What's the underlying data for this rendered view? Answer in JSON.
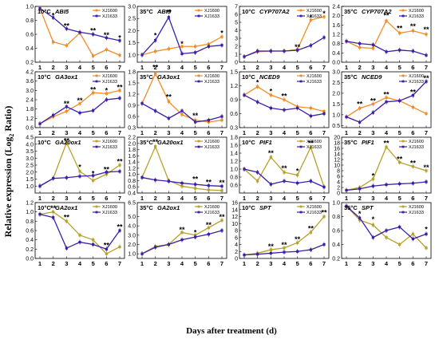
{
  "figure": {
    "ylabel": "Relative expression (Log",
    "ylabel_sub": "2",
    "ylabel_tail": " Ratio)",
    "xlabel": "Days after treatment (d)"
  },
  "colors": {
    "XJ1600_orange": "#F28C28",
    "XJ1600_olive": "#B8A02A",
    "XJ1633": "#3A1EA8"
  },
  "chart_data": [
    {
      "type": "line",
      "temp": "10°C",
      "gene": "ABI5",
      "color1": "#F28C28",
      "x": [
        1,
        2,
        3,
        4,
        5,
        6,
        7
      ],
      "ylim": [
        0.2,
        1.0
      ],
      "yticks": [
        "0.2",
        "0.4",
        "0.6",
        "0.8",
        "1.0"
      ],
      "series": [
        {
          "name": "XJ1600",
          "values": [
            0.97,
            0.49,
            0.44,
            0.62,
            0.29,
            0.38,
            0.3
          ]
        },
        {
          "name": "XJ1633",
          "values": [
            0.97,
            0.84,
            0.68,
            0.63,
            0.6,
            0.55,
            0.51
          ]
        }
      ],
      "sig": [
        {
          "x": 2,
          "y": 0.87,
          "text": "*"
        },
        {
          "x": 3,
          "y": 0.72,
          "text": "**"
        },
        {
          "x": 5,
          "y": 0.65,
          "text": "**"
        },
        {
          "x": 6,
          "y": 0.59,
          "text": "**"
        },
        {
          "x": 7,
          "y": 0.55,
          "text": "*"
        }
      ]
    },
    {
      "type": "line",
      "temp": "35°C",
      "gene": "ABI5",
      "color1": "#F28C28",
      "x": [
        1,
        2,
        3,
        4,
        5,
        6,
        7
      ],
      "ylim": [
        0.7,
        3.0
      ],
      "yticks": [
        "1.0",
        "1.5",
        "2.0",
        "2.5",
        "3.0"
      ],
      "series": [
        {
          "name": "XJ1600",
          "values": [
            1.0,
            1.15,
            1.25,
            1.35,
            1.35,
            1.45,
            1.75
          ]
        },
        {
          "name": "XJ1633",
          "values": [
            1.0,
            1.6,
            2.55,
            1.05,
            1.1,
            1.35,
            1.4
          ]
        }
      ],
      "sig": [
        {
          "x": 2,
          "y": 1.8,
          "text": "*"
        },
        {
          "x": 3,
          "y": 2.75,
          "text": "**"
        },
        {
          "x": 4,
          "y": 1.45,
          "text": "*"
        },
        {
          "x": 7,
          "y": 1.9,
          "text": "*"
        }
      ]
    },
    {
      "type": "line",
      "temp": "10°C",
      "gene": "CYP707A2",
      "color1": "#F28C28",
      "x": [
        1,
        2,
        3,
        4,
        5,
        6,
        7
      ],
      "ylim": [
        0,
        7
      ],
      "yticks": [
        "0",
        "1",
        "2",
        "3",
        "4",
        "5",
        "6",
        "7"
      ],
      "series": [
        {
          "name": "XJ1600",
          "values": [
            0.7,
            1.3,
            1.4,
            1.4,
            1.6,
            5.3,
            5.7
          ]
        },
        {
          "name": "XJ1633",
          "values": [
            0.7,
            1.4,
            1.4,
            1.4,
            1.5,
            2.1,
            3.1
          ]
        }
      ],
      "sig": [
        {
          "x": 5,
          "y": 1.9,
          "text": "**"
        },
        {
          "x": 6,
          "y": 5.6,
          "text": "*"
        },
        {
          "x": 7,
          "y": 6.1,
          "text": "*"
        }
      ]
    },
    {
      "type": "line",
      "temp": "35°C",
      "gene": "CYP707A2",
      "color1": "#F28C28",
      "x": [
        1,
        2,
        3,
        4,
        5,
        6,
        7
      ],
      "ylim": [
        0.0,
        2.4
      ],
      "yticks": [
        "0.0",
        "0.4",
        "0.8",
        "1.2",
        "1.6",
        "2.0",
        "2.4"
      ],
      "series": [
        {
          "name": "XJ1600",
          "values": [
            0.9,
            0.63,
            0.6,
            1.78,
            1.25,
            1.35,
            1.2
          ]
        },
        {
          "name": "XJ1633",
          "values": [
            0.9,
            0.8,
            0.75,
            0.45,
            0.52,
            0.48,
            0.3
          ]
        }
      ],
      "sig": [
        {
          "x": 4,
          "y": 2.0,
          "text": "**"
        },
        {
          "x": 5,
          "y": 1.45,
          "text": "**"
        },
        {
          "x": 6,
          "y": 1.55,
          "text": "**"
        },
        {
          "x": 7,
          "y": 1.4,
          "text": "**"
        }
      ]
    },
    {
      "type": "line",
      "temp": "10°C",
      "gene": "GA3ox1",
      "color1": "#F28C28",
      "x": [
        1,
        2,
        3,
        4,
        5,
        6,
        7
      ],
      "ylim": [
        0.6,
        4.2
      ],
      "yticks": [
        "0.6",
        "1.2",
        "1.8",
        "2.4",
        "3.0",
        "3.6",
        "4.2"
      ],
      "series": [
        {
          "name": "XJ1600",
          "values": [
            0.85,
            1.3,
            1.65,
            2.15,
            2.85,
            2.8,
            3.0
          ]
        },
        {
          "name": "XJ1633",
          "values": [
            0.85,
            1.4,
            1.95,
            1.55,
            1.7,
            2.4,
            2.5
          ]
        }
      ],
      "sig": [
        {
          "x": 3,
          "y": 2.15,
          "text": "**"
        },
        {
          "x": 4,
          "y": 2.35,
          "text": "**"
        },
        {
          "x": 5,
          "y": 3.05,
          "text": "**"
        },
        {
          "x": 6,
          "y": 3.0,
          "text": "*"
        },
        {
          "x": 7,
          "y": 3.2,
          "text": "**"
        }
      ]
    },
    {
      "type": "line",
      "temp": "35°C",
      "gene": "GA3ox1",
      "color1": "#F28C28",
      "x": [
        1,
        2,
        3,
        4,
        5,
        6,
        7
      ],
      "ylim": [
        0.3,
        1.8
      ],
      "yticks": [
        "0.3",
        "0.6",
        "0.9",
        "1.2",
        "1.5",
        "1.8"
      ],
      "series": [
        {
          "name": "XJ1600",
          "values": [
            0.95,
            1.75,
            1.0,
            0.65,
            0.5,
            0.45,
            0.5
          ]
        },
        {
          "name": "XJ1633",
          "values": [
            0.95,
            0.75,
            0.55,
            0.75,
            0.45,
            0.5,
            0.6
          ]
        }
      ],
      "sig": [
        {
          "x": 2,
          "y": 1.92,
          "text": "**"
        },
        {
          "x": 3,
          "y": 1.12,
          "text": "**"
        },
        {
          "x": 5,
          "y": 0.62,
          "text": "**"
        }
      ]
    },
    {
      "type": "line",
      "temp": "10°C",
      "gene": "NCED9",
      "color1": "#F28C28",
      "x": [
        1,
        2,
        3,
        4,
        5,
        6,
        7
      ],
      "ylim": [
        0.3,
        1.5
      ],
      "yticks": [
        "0.3",
        "0.6",
        "0.9",
        "1.2",
        "1.5"
      ],
      "series": [
        {
          "name": "XJ1600",
          "values": [
            1.0,
            1.18,
            1.0,
            0.9,
            0.75,
            0.72,
            0.65
          ]
        },
        {
          "name": "XJ1633",
          "values": [
            1.0,
            0.85,
            0.72,
            0.68,
            0.72,
            0.55,
            0.6
          ]
        }
      ],
      "sig": [
        {
          "x": 2,
          "y": 1.27,
          "text": "*"
        },
        {
          "x": 3,
          "y": 1.08,
          "text": "*"
        },
        {
          "x": 4,
          "y": 0.98,
          "text": "**"
        }
      ]
    },
    {
      "type": "line",
      "temp": "35°C",
      "gene": "NCED9",
      "color1": "#F28C28",
      "x": [
        1,
        2,
        3,
        4,
        5,
        6,
        7
      ],
      "ylim": [
        0.4,
        3.0
      ],
      "yticks": [
        "0.5",
        "1.0",
        "1.5",
        "2.0",
        "2.5",
        "3.0"
      ],
      "series": [
        {
          "name": "XJ1600",
          "values": [
            0.9,
            1.3,
            1.5,
            1.8,
            1.65,
            1.35,
            1.05
          ]
        },
        {
          "name": "XJ1633",
          "values": [
            0.9,
            0.65,
            1.1,
            1.6,
            1.65,
            1.9,
            2.55
          ]
        }
      ],
      "sig": [
        {
          "x": 2,
          "y": 1.5,
          "text": "**"
        },
        {
          "x": 3,
          "y": 1.65,
          "text": "**"
        },
        {
          "x": 4,
          "y": 1.95,
          "text": "**"
        },
        {
          "x": 6,
          "y": 2.05,
          "text": "**"
        },
        {
          "x": 7,
          "y": 2.7,
          "text": "**"
        }
      ]
    },
    {
      "type": "line",
      "temp": "10°C",
      "gene": "GA20ox1",
      "color1": "#B8A02A",
      "x": [
        1,
        2,
        3,
        4,
        5,
        6,
        7
      ],
      "ylim": [
        0.5,
        4.5
      ],
      "yticks": [
        "1.0",
        "1.5",
        "2.0",
        "2.5",
        "3.0",
        "3.5",
        "4.0",
        "4.5"
      ],
      "series": [
        {
          "name": "XJ1600",
          "values": [
            1.0,
            1.55,
            4.1,
            2.05,
            1.4,
            1.85,
            2.5
          ]
        },
        {
          "name": "XJ1633",
          "values": [
            1.0,
            1.55,
            1.6,
            1.7,
            1.75,
            2.0,
            2.05
          ]
        }
      ],
      "sig": [
        {
          "x": 3,
          "y": 4.25,
          "text": "**"
        },
        {
          "x": 4,
          "y": 2.35,
          "text": "*"
        },
        {
          "x": 5,
          "y": 1.9,
          "text": "*"
        },
        {
          "x": 6,
          "y": 2.2,
          "text": "**"
        },
        {
          "x": 7,
          "y": 2.75,
          "text": "**"
        }
      ]
    },
    {
      "type": "line",
      "temp": "35°C",
      "gene": "GA20ox1",
      "color1": "#B8A02A",
      "x": [
        1,
        2,
        3,
        4,
        5,
        6,
        7
      ],
      "ylim": [
        0.4,
        2.2
      ],
      "yticks": [
        "0.4",
        "0.6",
        "0.8",
        "1.0",
        "1.2",
        "1.4",
        "1.6",
        "1.8",
        "2.0",
        "2.2"
      ],
      "series": [
        {
          "name": "XJ1600",
          "values": [
            0.9,
            1.9,
            0.8,
            0.62,
            0.55,
            0.5,
            0.48
          ]
        },
        {
          "name": "XJ1633",
          "values": [
            0.9,
            0.82,
            0.78,
            0.72,
            0.68,
            0.64,
            0.62
          ]
        }
      ],
      "sig": [
        {
          "x": 2,
          "y": 2.05,
          "text": "**"
        },
        {
          "x": 5,
          "y": 0.85,
          "text": "**"
        },
        {
          "x": 6,
          "y": 0.75,
          "text": "**"
        },
        {
          "x": 7,
          "y": 0.73,
          "text": "**"
        }
      ]
    },
    {
      "type": "line",
      "temp": "10°C",
      "gene": "PIF1",
      "color1": "#B8A02A",
      "x": [
        1,
        2,
        3,
        4,
        5,
        6,
        7
      ],
      "ylim": [
        0.4,
        1.8
      ],
      "yticks": [
        "0.6",
        "0.8",
        "1.0",
        "1.2",
        "1.4",
        "1.6",
        "1.8"
      ],
      "series": [
        {
          "name": "XJ1600",
          "values": [
            1.0,
            0.7,
            1.3,
            0.92,
            0.85,
            1.55,
            0.55
          ]
        },
        {
          "name": "XJ1633",
          "values": [
            1.0,
            0.92,
            0.62,
            0.7,
            0.65,
            0.7,
            0.55
          ]
        }
      ],
      "sig": [
        {
          "x": 3,
          "y": 1.4,
          "text": "**"
        },
        {
          "x": 4,
          "y": 1.02,
          "text": "**"
        },
        {
          "x": 5,
          "y": 0.95,
          "text": "*"
        },
        {
          "x": 6,
          "y": 1.65,
          "text": "**"
        }
      ]
    },
    {
      "type": "line",
      "temp": "35°C",
      "gene": "PIF1",
      "color1": "#B8A02A",
      "x": [
        1,
        2,
        3,
        4,
        5,
        6,
        7
      ],
      "ylim": [
        0,
        20
      ],
      "yticks": [
        "0",
        "2",
        "4",
        "6",
        "8",
        "10",
        "12",
        "14",
        "16",
        "18",
        "20"
      ],
      "series": [
        {
          "name": "XJ1600",
          "values": [
            1.0,
            2.0,
            5.0,
            16.5,
            11.0,
            9.5,
            8.0
          ]
        },
        {
          "name": "XJ1633",
          "values": [
            1.0,
            1.5,
            2.5,
            3.0,
            3.3,
            3.5,
            4.0
          ]
        }
      ],
      "sig": [
        {
          "x": 3,
          "y": 6.2,
          "text": "*"
        },
        {
          "x": 4,
          "y": 17.8,
          "text": "**"
        },
        {
          "x": 5,
          "y": 12.2,
          "text": "**"
        },
        {
          "x": 6,
          "y": 10.7,
          "text": "**"
        },
        {
          "x": 7,
          "y": 9.2,
          "text": "**"
        }
      ]
    },
    {
      "type": "line",
      "temp": "10°C",
      "gene": "GA2ox1",
      "color1": "#B8A02A",
      "x": [
        1,
        2,
        3,
        4,
        5,
        6,
        7
      ],
      "ylim": [
        0.0,
        1.2
      ],
      "yticks": [
        "0.0",
        "0.2",
        "0.4",
        "0.6",
        "0.8",
        "1.0",
        "1.2"
      ],
      "series": [
        {
          "name": "XJ1600",
          "values": [
            0.95,
            1.0,
            0.8,
            0.5,
            0.4,
            0.1,
            0.25
          ]
        },
        {
          "name": "XJ1633",
          "values": [
            0.95,
            0.88,
            0.22,
            0.35,
            0.3,
            0.2,
            0.6
          ]
        }
      ],
      "sig": [
        {
          "x": 2,
          "y": 1.08,
          "text": "**"
        },
        {
          "x": 3,
          "y": 0.88,
          "text": "**"
        },
        {
          "x": 6,
          "y": 0.28,
          "text": "**"
        },
        {
          "x": 7,
          "y": 0.68,
          "text": "**"
        }
      ]
    },
    {
      "type": "line",
      "temp": "35°C",
      "gene": "GA2ox1",
      "color1": "#B8A02A",
      "x": [
        1,
        2,
        3,
        4,
        5,
        6,
        7
      ],
      "ylim": [
        0.5,
        6.5
      ],
      "yticks": [
        "1.0",
        "2.0",
        "3.0",
        "4.0",
        "5.0",
        "6.5"
      ],
      "series": [
        {
          "name": "XJ1600",
          "values": [
            1.0,
            1.8,
            2.0,
            3.3,
            3.0,
            3.8,
            4.6
          ]
        },
        {
          "name": "XJ1633",
          "values": [
            1.0,
            1.7,
            2.0,
            2.5,
            2.8,
            3.1,
            3.5
          ]
        }
      ],
      "sig": [
        {
          "x": 4,
          "y": 3.6,
          "text": "**"
        },
        {
          "x": 5,
          "y": 3.3,
          "text": "*"
        },
        {
          "x": 6,
          "y": 4.1,
          "text": "**"
        },
        {
          "x": 7,
          "y": 4.95,
          "text": "**"
        }
      ]
    },
    {
      "type": "line",
      "temp": "10°C",
      "gene": "SPT",
      "color1": "#B8A02A",
      "x": [
        1,
        2,
        3,
        4,
        5,
        6,
        7
      ],
      "ylim": [
        0,
        16
      ],
      "yticks": [
        "0",
        "2",
        "4",
        "6",
        "8",
        "10",
        "12",
        "14",
        "16"
      ],
      "series": [
        {
          "name": "XJ1600",
          "values": [
            1.0,
            1.5,
            2.5,
            3.0,
            4.5,
            7.5,
            12.0
          ]
        },
        {
          "name": "XJ1633",
          "values": [
            1.0,
            1.2,
            1.5,
            1.8,
            2.0,
            2.5,
            4.0
          ]
        }
      ],
      "sig": [
        {
          "x": 3,
          "y": 3.4,
          "text": "**"
        },
        {
          "x": 4,
          "y": 3.9,
          "text": "**"
        },
        {
          "x": 5,
          "y": 5.5,
          "text": "**"
        },
        {
          "x": 6,
          "y": 8.6,
          "text": "**"
        },
        {
          "x": 7,
          "y": 13.2,
          "text": "**"
        }
      ]
    },
    {
      "type": "line",
      "temp": "35°C",
      "gene": "SPT",
      "color1": "#B8A02A",
      "x": [
        1,
        2,
        3,
        4,
        5,
        6,
        7
      ],
      "ylim": [
        0.2,
        1.0
      ],
      "yticks": [
        "0.2",
        "0.4",
        "0.6",
        "0.8",
        "1.0"
      ],
      "series": [
        {
          "name": "XJ1600",
          "values": [
            0.95,
            0.75,
            0.68,
            0.5,
            0.4,
            0.55,
            0.35
          ]
        },
        {
          "name": "XJ1633",
          "values": [
            0.95,
            0.78,
            0.5,
            0.6,
            0.65,
            0.48,
            0.55
          ]
        }
      ],
      "sig": [
        {
          "x": 2,
          "y": 0.84,
          "text": "*"
        },
        {
          "x": 3,
          "y": 0.76,
          "text": "*"
        },
        {
          "x": 7,
          "y": 0.62,
          "text": "*"
        }
      ]
    }
  ]
}
